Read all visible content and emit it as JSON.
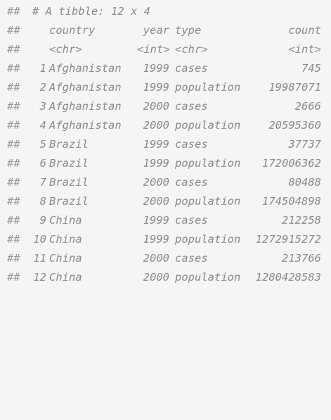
{
  "console": {
    "prompt_prefix": "##",
    "tibble_header": "# A tibble: 12 x 4",
    "columns": [
      {
        "name": "country",
        "type": "<chr>"
      },
      {
        "name": "year",
        "type": "<int>"
      },
      {
        "name": "type",
        "type": "<chr>"
      },
      {
        "name": "count",
        "type": "<int>"
      }
    ],
    "rows": [
      {
        "index": "1",
        "country": "Afghanistan",
        "year": "1999",
        "type": "cases",
        "count": "745"
      },
      {
        "index": "2",
        "country": "Afghanistan",
        "year": "1999",
        "type": "population",
        "count": "19987071"
      },
      {
        "index": "3",
        "country": "Afghanistan",
        "year": "2000",
        "type": "cases",
        "count": "2666"
      },
      {
        "index": "4",
        "country": "Afghanistan",
        "year": "2000",
        "type": "population",
        "count": "20595360"
      },
      {
        "index": "5",
        "country": "Brazil",
        "year": "1999",
        "type": "cases",
        "count": "37737"
      },
      {
        "index": "6",
        "country": "Brazil",
        "year": "1999",
        "type": "population",
        "count": "172006362"
      },
      {
        "index": "7",
        "country": "Brazil",
        "year": "2000",
        "type": "cases",
        "count": "80488"
      },
      {
        "index": "8",
        "country": "Brazil",
        "year": "2000",
        "type": "population",
        "count": "174504898"
      },
      {
        "index": "9",
        "country": "China",
        "year": "1999",
        "type": "cases",
        "count": "212258"
      },
      {
        "index": "10",
        "country": "China",
        "year": "1999",
        "type": "population",
        "count": "1272915272"
      },
      {
        "index": "11",
        "country": "China",
        "year": "2000",
        "type": "cases",
        "count": "213766"
      },
      {
        "index": "12",
        "country": "China",
        "year": "2000",
        "type": "population",
        "count": "1280428583"
      }
    ]
  }
}
